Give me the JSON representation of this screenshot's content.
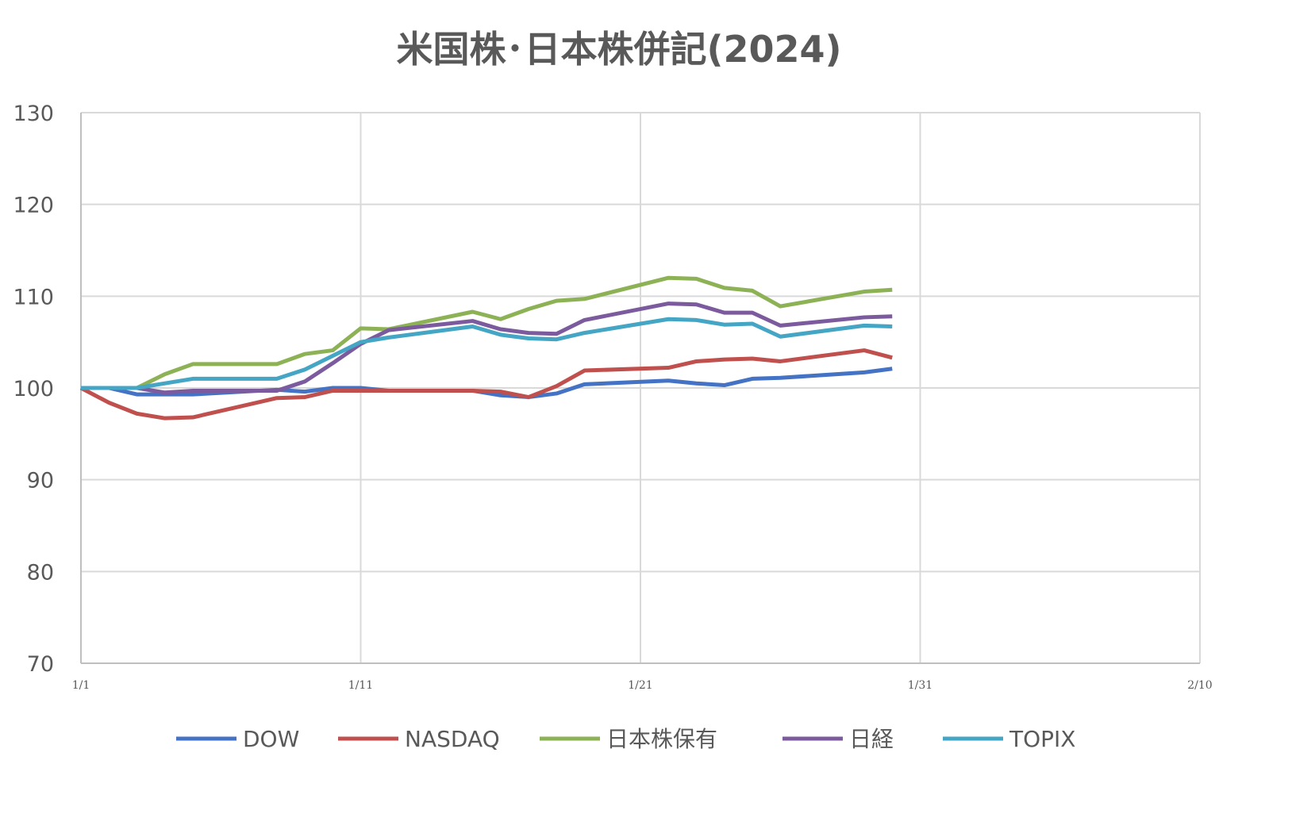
{
  "chart_data": {
    "type": "line",
    "title": "米国株･日本株併記(2024)",
    "xlabel": "",
    "ylabel": "",
    "ylim": [
      70,
      130
    ],
    "yticks": [
      70,
      80,
      90,
      100,
      110,
      120,
      130
    ],
    "xlim_days": [
      0,
      40
    ],
    "xtick_labels": [
      "1/1",
      "1/11",
      "1/21",
      "1/31",
      "2/10"
    ],
    "grid": true,
    "legend_position": "bottom",
    "x_days": [
      0,
      1,
      2,
      3,
      4,
      7,
      8,
      9,
      10,
      11,
      14,
      15,
      16,
      17,
      18,
      21,
      22,
      23,
      24,
      25,
      28,
      29
    ],
    "series": [
      {
        "name": "DOW",
        "color": "#4472C4",
        "values": [
          100,
          100,
          99.3,
          99.3,
          99.3,
          99.8,
          99.6,
          100,
          100,
          99.7,
          99.7,
          99.2,
          99.0,
          99.4,
          100.4,
          100.8,
          100.5,
          100.3,
          101.0,
          101.1,
          101.7,
          102.1
        ]
      },
      {
        "name": "NASDAQ",
        "color": "#C0504D",
        "values": [
          100,
          98.4,
          97.2,
          96.7,
          96.8,
          98.9,
          99.0,
          99.7,
          99.7,
          99.7,
          99.7,
          99.6,
          99.0,
          100.2,
          101.9,
          102.2,
          102.9,
          103.1,
          103.2,
          102.9,
          104.1,
          103.3
        ]
      },
      {
        "name": "日本株保有",
        "color": "#8DB255",
        "values": [
          100,
          100,
          100,
          101.5,
          102.6,
          102.6,
          103.7,
          104.1,
          106.5,
          106.4,
          108.3,
          107.5,
          108.6,
          109.5,
          109.7,
          112.0,
          111.9,
          110.9,
          110.6,
          108.9,
          110.5,
          110.7
        ]
      },
      {
        "name": "日経",
        "color": "#7B5B9E",
        "values": [
          100,
          100,
          100,
          99.5,
          99.7,
          99.7,
          100.7,
          102.7,
          104.8,
          106.3,
          107.3,
          106.4,
          106.0,
          105.9,
          107.4,
          109.2,
          109.1,
          108.2,
          108.2,
          106.8,
          107.7,
          107.8
        ]
      },
      {
        "name": "TOPIX",
        "color": "#45A5C4",
        "values": [
          100,
          100,
          100,
          100.5,
          101.0,
          101.0,
          102.0,
          103.5,
          105.0,
          105.5,
          106.7,
          105.8,
          105.4,
          105.3,
          106.0,
          107.5,
          107.4,
          106.9,
          107.0,
          105.6,
          106.8,
          106.7
        ]
      }
    ]
  }
}
